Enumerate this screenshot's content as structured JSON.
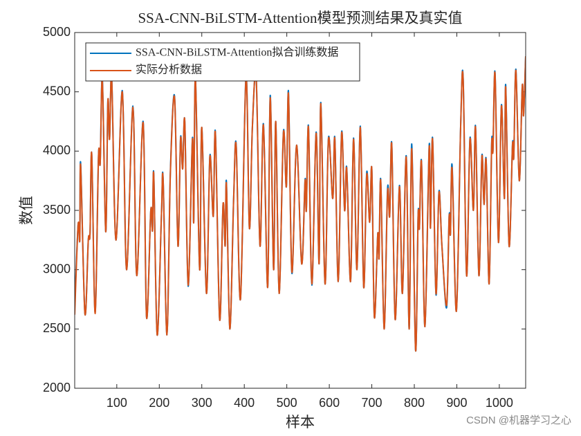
{
  "chart_data": {
    "type": "line",
    "title": "SSA-CNN-BiLSTM-Attention模型预测结果及真实值",
    "x_label": "样本",
    "y_label": "数值",
    "watermark": "CSDN @机器学习之心",
    "xlim": [
      1,
      1062
    ],
    "xticks": [
      100,
      200,
      300,
      400,
      500,
      600,
      700,
      800,
      900,
      1000
    ],
    "ylim": [
      2000,
      5000
    ],
    "yticks": [
      2000,
      2500,
      3000,
      3500,
      4000,
      4500,
      5000
    ],
    "legend": "upper left",
    "x": [
      1,
      9,
      13,
      15,
      25,
      33,
      37,
      41,
      49,
      57,
      61,
      66,
      74,
      79,
      83,
      88,
      98,
      113,
      123,
      138,
      147,
      162,
      170,
      180,
      184,
      187,
      195,
      205,
      209,
      218,
      226,
      236,
      244,
      250,
      255,
      260,
      268,
      278,
      281,
      285,
      295,
      300,
      311,
      319,
      327,
      332,
      342,
      350,
      355,
      358,
      366,
      375,
      381,
      391,
      404,
      412,
      419,
      428,
      437,
      445,
      455,
      461,
      469,
      474,
      482,
      492,
      499,
      504,
      512,
      523,
      535,
      543,
      546,
      551,
      559,
      569,
      576,
      580,
      590,
      598,
      608,
      613,
      621,
      629,
      636,
      641,
      650,
      657,
      665,
      673,
      681,
      688,
      695,
      700,
      706,
      714,
      717,
      721,
      729,
      737,
      742,
      747,
      755,
      765,
      772,
      781,
      788,
      794,
      803,
      809,
      812,
      817,
      825,
      835,
      838,
      843,
      851,
      858,
      865,
      876,
      882,
      885,
      889,
      899,
      909,
      915,
      923,
      931,
      939,
      944,
      952,
      959,
      964,
      969,
      976,
      982,
      985,
      990,
      998,
      1005,
      1012,
      1015,
      1023,
      1031,
      1034,
      1039,
      1047,
      1054,
      1057,
      1062
    ],
    "series": [
      {
        "name": "SSA-CNN-BiLSTM-Attention拟合训练数据",
        "color": "#0072bd",
        "values": [
          2700,
          3380,
          3250,
          3900,
          2630,
          3250,
          3300,
          3980,
          2640,
          3960,
          3900,
          4620,
          3320,
          4420,
          4100,
          4620,
          3250,
          4510,
          3000,
          4380,
          2950,
          4250,
          2600,
          3500,
          3330,
          3810,
          2450,
          3450,
          3770,
          2450,
          3820,
          4460,
          3200,
          4110,
          3850,
          4250,
          2860,
          4110,
          3400,
          4620,
          3000,
          4200,
          2800,
          3960,
          3450,
          4160,
          2580,
          3550,
          3200,
          3740,
          2500,
          3610,
          4050,
          2750,
          4640,
          3350,
          4200,
          4620,
          3200,
          4230,
          2850,
          4470,
          3000,
          4250,
          2800,
          4160,
          3700,
          4500,
          2970,
          4050,
          3050,
          3760,
          3500,
          4210,
          2870,
          4160,
          3050,
          4410,
          2880,
          4110,
          3600,
          4110,
          2900,
          4160,
          3500,
          3860,
          2900,
          4110,
          3000,
          4210,
          2850,
          3820,
          3400,
          3850,
          2600,
          3300,
          3100,
          3760,
          2500,
          3680,
          3450,
          4060,
          2580,
          3710,
          2800,
          3960,
          2500,
          4060,
          2320,
          3470,
          3350,
          3910,
          2520,
          4050,
          3350,
          4110,
          2790,
          3660,
          3200,
          2680,
          3460,
          3300,
          3880,
          2650,
          4210,
          4610,
          2950,
          4110,
          3500,
          4210,
          2950,
          3960,
          3550,
          3930,
          2880,
          4070,
          4000,
          4660,
          3230,
          4390,
          3600,
          4560,
          3200,
          4060,
          3950,
          4690,
          3750,
          4550,
          4300,
          4800
        ]
      },
      {
        "name": "实际分析数据",
        "color": "#d95319",
        "values": [
          2620,
          3380,
          3250,
          3880,
          2630,
          3250,
          3300,
          3980,
          2630,
          3960,
          3900,
          4600,
          3320,
          4420,
          4100,
          4620,
          3250,
          4500,
          3000,
          4370,
          2950,
          4240,
          2600,
          3500,
          3330,
          3800,
          2450,
          3450,
          3760,
          2450,
          3800,
          4450,
          3200,
          4100,
          3850,
          4250,
          2870,
          4100,
          3400,
          4620,
          3000,
          4200,
          2800,
          3950,
          3450,
          4150,
          2580,
          3550,
          3200,
          3720,
          2500,
          3600,
          4040,
          2750,
          4620,
          3350,
          4200,
          4620,
          3200,
          4220,
          2850,
          4450,
          3000,
          4250,
          2800,
          4150,
          3700,
          4480,
          2980,
          4050,
          3050,
          3750,
          3500,
          4200,
          2880,
          4150,
          3050,
          4400,
          2880,
          4100,
          3600,
          4100,
          2900,
          4150,
          3500,
          3850,
          2900,
          4100,
          3000,
          4200,
          2850,
          3800,
          3400,
          3850,
          2600,
          3300,
          3100,
          3750,
          2500,
          3650,
          3450,
          4050,
          2580,
          3700,
          2800,
          3950,
          2500,
          4020,
          2320,
          3460,
          3350,
          3900,
          2520,
          4030,
          3350,
          4100,
          2800,
          3650,
          3200,
          2700,
          3450,
          3300,
          3850,
          2650,
          4200,
          4600,
          2950,
          4100,
          3500,
          4200,
          2950,
          3950,
          3550,
          3920,
          2880,
          4050,
          4000,
          4650,
          3230,
          4380,
          3600,
          4540,
          3200,
          4050,
          3950,
          4680,
          3750,
          4550,
          4300,
          4800
        ]
      }
    ]
  }
}
